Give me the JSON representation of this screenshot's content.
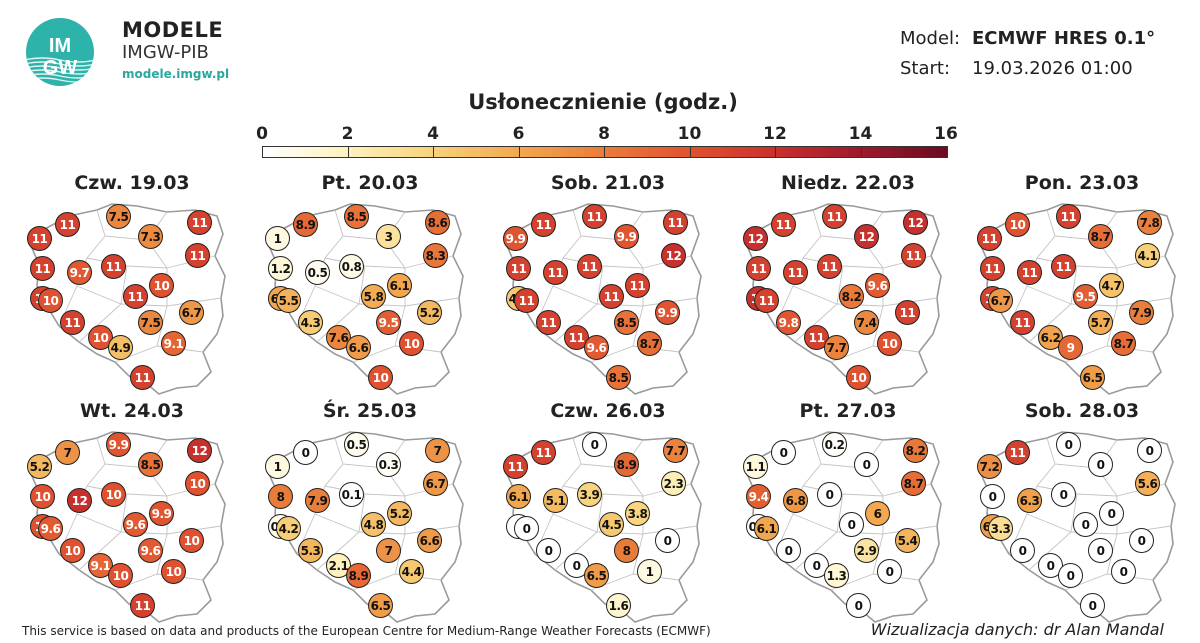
{
  "header": {
    "logo_text": "IMGW",
    "brand_title": "MODELE",
    "brand_subtitle": "IMGW-PIB",
    "brand_url": "modele.imgw.pl",
    "model_label": "Model:",
    "model_value": "ECMWF HRES 0.1°",
    "start_label": "Start:",
    "start_value": "19.03.2026 01:00"
  },
  "map_title": "Usłonecznienie (godz.)",
  "scale": {
    "ticks": [
      "0",
      "2",
      "4",
      "6",
      "8",
      "10",
      "12",
      "14",
      "16"
    ],
    "colors": [
      "#ffffff",
      "#fdf3c0",
      "#f8d27a",
      "#f2a84f",
      "#ea7c3a",
      "#e0522f",
      "#c8302d",
      "#9c1a2c",
      "#6b0b22"
    ]
  },
  "days": [
    {
      "label": "Czw. 19.03",
      "values": [
        "11",
        "11",
        "7.5",
        "11",
        "11",
        "9.7",
        "7.3",
        "11",
        "11",
        "11",
        "10",
        "10",
        "11",
        "11",
        "7.5",
        "6.7",
        "10",
        "9.1",
        "4.9",
        "11"
      ]
    },
    {
      "label": "Pt. 20.03",
      "values": [
        "1",
        "8.9",
        "8.5",
        "8.6",
        "1.2",
        "0.5",
        "3",
        "8.3",
        "6.1",
        "0.8",
        "6.1",
        "5.5",
        "4.3",
        "5.8",
        "9.5",
        "5.2",
        "7.6",
        "10",
        "6.6",
        "10"
      ]
    },
    {
      "label": "Sob. 21.03",
      "values": [
        "9.9",
        "11",
        "11",
        "11",
        "11",
        "11",
        "9.9",
        "12",
        "4.4",
        "11",
        "11",
        "11",
        "11",
        "11",
        "8.5",
        "9.9",
        "11",
        "8.7",
        "9.6",
        "8.5"
      ]
    },
    {
      "label": "Niedz. 22.03",
      "values": [
        "12",
        "11",
        "11",
        "12",
        "11",
        "11",
        "12",
        "11",
        "12",
        "11",
        "9.6",
        "11",
        "9.8",
        "8.2",
        "7.4",
        "11",
        "11",
        "10",
        "7.7",
        "10"
      ]
    },
    {
      "label": "Pon. 23.03",
      "values": [
        "11",
        "10",
        "11",
        "7.8",
        "11",
        "11",
        "8.7",
        "4.1",
        "11",
        "11",
        "4.7",
        "6.7",
        "11",
        "9.5",
        "5.7",
        "7.9",
        "6.2",
        "8.7",
        "9",
        "6.5"
      ]
    },
    {
      "label": "Wt. 24.03",
      "values": [
        "5.2",
        "7",
        "9.9",
        "12",
        "10",
        "12",
        "8.5",
        "10",
        "10",
        "10",
        "9.9",
        "9.6",
        "10",
        "9.6",
        "9.6",
        "10",
        "9.1",
        "10",
        "10",
        "11"
      ]
    },
    {
      "label": "Śr. 25.03",
      "values": [
        "1",
        "0",
        "0.5",
        "7",
        "8",
        "7.9",
        "0.3",
        "6.7",
        "0.6",
        "0.1",
        "5.2",
        "4.2",
        "5.3",
        "4.8",
        "7",
        "6.6",
        "2.1",
        "4.4",
        "8.9",
        "6.5"
      ]
    },
    {
      "label": "Czw. 26.03",
      "values": [
        "11",
        "11",
        "0",
        "7.7",
        "6.1",
        "5.1",
        "8.9",
        "2.3",
        "0",
        "3.9",
        "3.8",
        "0",
        "0",
        "4.5",
        "8",
        "0",
        "0",
        "1",
        "6.5",
        "1.6"
      ]
    },
    {
      "label": "Pt. 27.03",
      "values": [
        "1.1",
        "0",
        "0.2",
        "8.2",
        "9.4",
        "6.8",
        "0",
        "8.7",
        "0.1",
        "0",
        "6",
        "6.1",
        "0",
        "0",
        "2.9",
        "5.4",
        "0",
        "0",
        "1.3",
        "0"
      ]
    },
    {
      "label": "Sob. 28.03",
      "values": [
        "7.2",
        "11",
        "0",
        "0",
        "0",
        "6.3",
        "0",
        "5.6",
        "6.4",
        "0",
        "0",
        "3.3",
        "0",
        "0",
        "0",
        "0",
        "0",
        "0",
        "0",
        "0"
      ]
    }
  ],
  "footer": {
    "disclaimer": "This service is based on data and products of the European Centre for Medium-Range Weather Forecasts (ECMWF)",
    "credit": "Wizualizacja danych: dr Alan Mandal"
  }
}
